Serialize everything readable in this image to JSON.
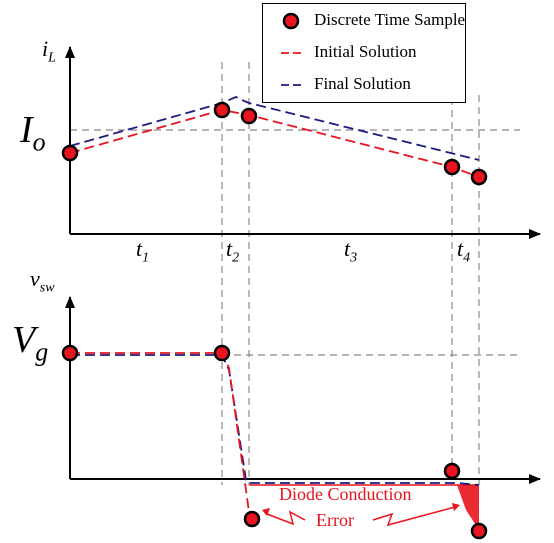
{
  "legend": {
    "sample_label": "Discrete Time Sample",
    "initial_label": "Initial Solution",
    "final_label": "Final Solution"
  },
  "labels": {
    "iL": "i",
    "iL_sub": "L",
    "Io": "I",
    "Io_sub": "o",
    "vsw": "v",
    "vsw_sub": "sw",
    "Vg": "V",
    "Vg_sub": "g",
    "t1": "t",
    "t1_sub": "1",
    "t2": "t",
    "t2_sub": "2",
    "t3": "t",
    "t3_sub": "3",
    "t4": "t",
    "t4_sub": "4",
    "diode": "Diode Conduction",
    "error": "Error"
  },
  "colors": {
    "initial": "#e8141e",
    "final": "#1c1c80",
    "sample_fill": "#e8141e",
    "sample_stroke": "#000000",
    "error_fill": "#e8141e"
  }
}
